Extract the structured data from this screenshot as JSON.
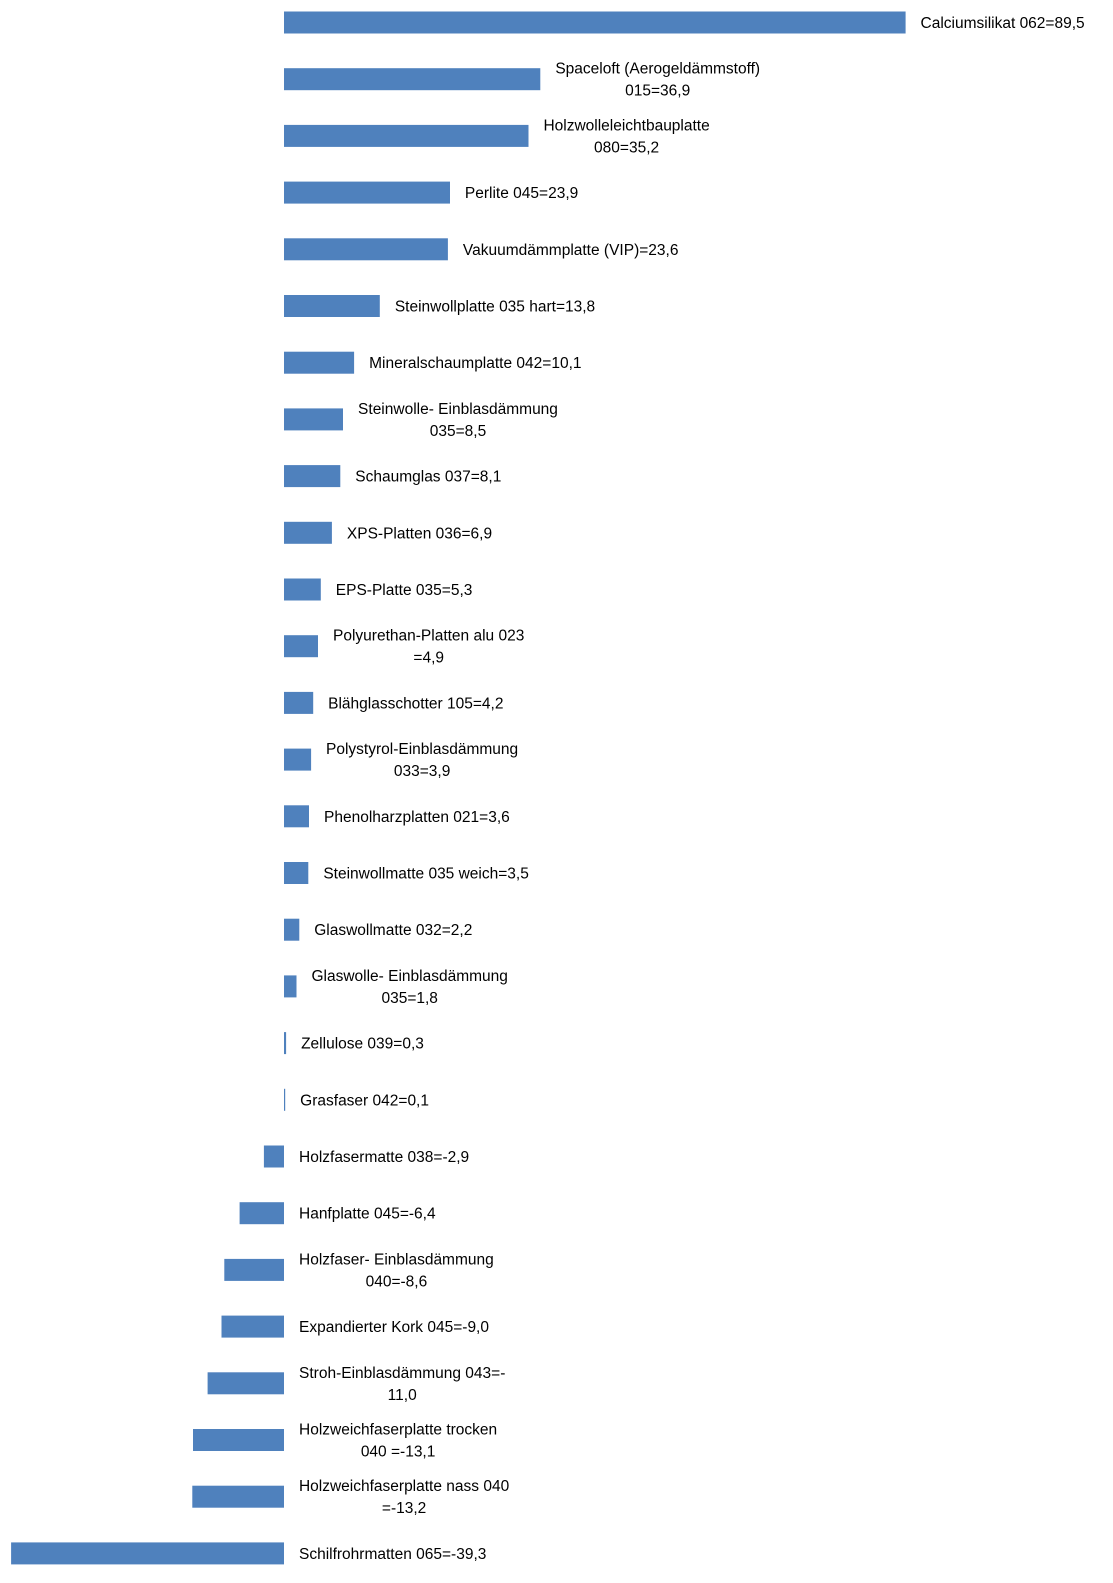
{
  "chart_data": {
    "type": "bar",
    "orientation": "horizontal",
    "bar_color": "#4f81bd",
    "grid": false,
    "legend": "none",
    "xlim": [
      -40,
      90
    ],
    "bars": [
      {
        "value": 89.5,
        "label_lines": [
          "Calciumsilikat 062=89,5"
        ]
      },
      {
        "value": 36.9,
        "label_lines": [
          "Spaceloft (Aerogeldämmstoff)",
          "015=36,9"
        ]
      },
      {
        "value": 35.2,
        "label_lines": [
          "Holzwolleleichtbauplatte",
          "080=35,2"
        ]
      },
      {
        "value": 23.9,
        "label_lines": [
          "Perlite 045=23,9"
        ]
      },
      {
        "value": 23.6,
        "label_lines": [
          "Vakuumdämmplatte (VIP)=23,6"
        ]
      },
      {
        "value": 13.8,
        "label_lines": [
          "Steinwollplatte 035 hart=13,8"
        ]
      },
      {
        "value": 10.1,
        "label_lines": [
          "Mineralschaumplatte 042=10,1"
        ]
      },
      {
        "value": 8.5,
        "label_lines": [
          "Steinwolle- Einblasdämmung",
          "035=8,5"
        ]
      },
      {
        "value": 8.1,
        "label_lines": [
          "Schaumglas 037=8,1"
        ]
      },
      {
        "value": 6.9,
        "label_lines": [
          "XPS-Platten 036=6,9"
        ]
      },
      {
        "value": 5.3,
        "label_lines": [
          "EPS-Platte 035=5,3"
        ]
      },
      {
        "value": 4.9,
        "label_lines": [
          "Polyurethan-Platten alu 023",
          "=4,9"
        ]
      },
      {
        "value": 4.2,
        "label_lines": [
          "Blähglasschotter 105=4,2"
        ]
      },
      {
        "value": 3.9,
        "label_lines": [
          "Polystyrol-Einblasdämmung",
          "033=3,9"
        ]
      },
      {
        "value": 3.6,
        "label_lines": [
          "Phenolharzplatten 021=3,6"
        ]
      },
      {
        "value": 3.5,
        "label_lines": [
          "Steinwollmatte 035 weich=3,5"
        ]
      },
      {
        "value": 2.2,
        "label_lines": [
          "Glaswollmatte 032=2,2"
        ]
      },
      {
        "value": 1.8,
        "label_lines": [
          "Glaswolle- Einblasdämmung",
          "035=1,8"
        ]
      },
      {
        "value": 0.3,
        "label_lines": [
          "Zellulose 039=0,3"
        ]
      },
      {
        "value": 0.1,
        "label_lines": [
          "Grasfaser 042=0,1"
        ]
      },
      {
        "value": -2.9,
        "label_lines": [
          "Holzfasermatte 038=-2,9"
        ]
      },
      {
        "value": -6.4,
        "label_lines": [
          "Hanfplatte 045=-6,4"
        ]
      },
      {
        "value": -8.6,
        "label_lines": [
          "Holzfaser- Einblasdämmung",
          "040=-8,6"
        ]
      },
      {
        "value": -9.0,
        "label_lines": [
          "Expandierter Kork 045=-9,0"
        ]
      },
      {
        "value": -11.0,
        "label_lines": [
          "Stroh-Einblasdämmung 043=-",
          "11,0"
        ]
      },
      {
        "value": -13.1,
        "label_lines": [
          "Holzweichfaserplatte trocken",
          "040 =-13,1"
        ]
      },
      {
        "value": -13.2,
        "label_lines": [
          "Holzweichfaserplatte nass 040",
          "=-13,2"
        ]
      },
      {
        "value": -39.3,
        "label_lines": [
          "Schilfrohrmatten 065=-39,3"
        ]
      }
    ]
  }
}
